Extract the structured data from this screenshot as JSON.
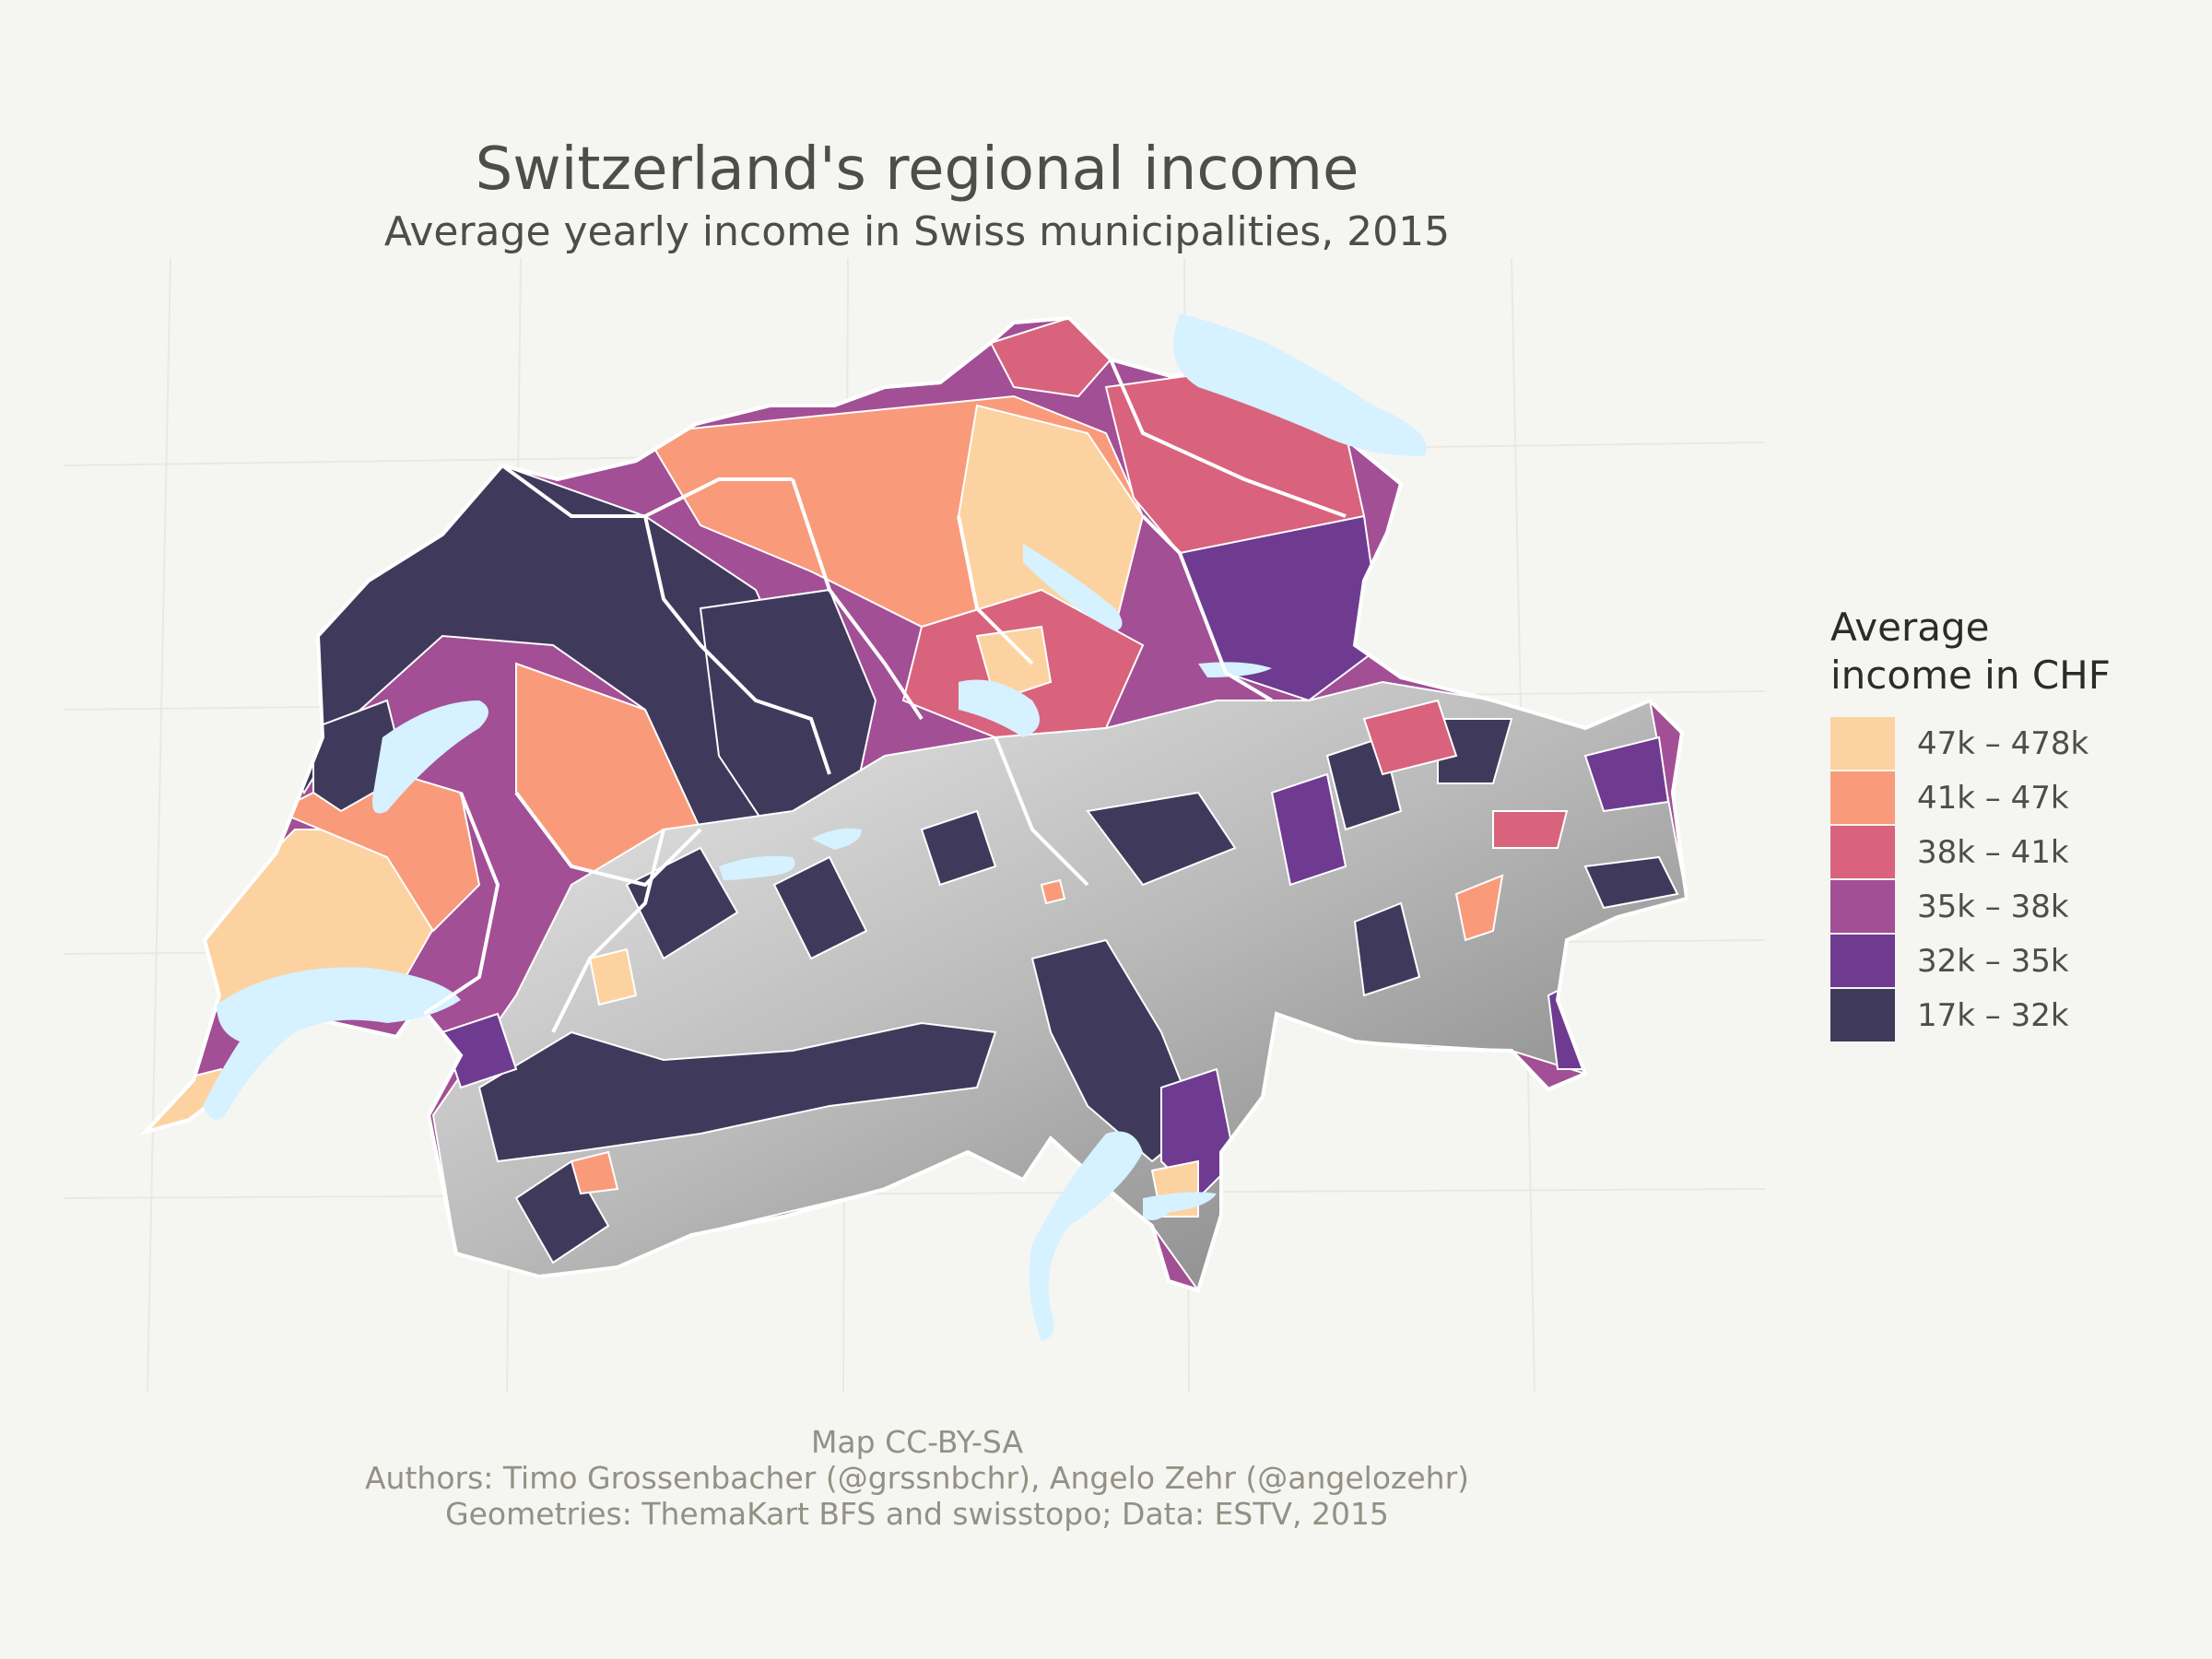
{
  "title": "Switzerland's regional income",
  "subtitle": "Average yearly income in Swiss municipalities, 2015",
  "legend": {
    "title": "Average\nincome in CHF",
    "items": [
      {
        "label": "47k – 478k",
        "color": "#fcd3a0"
      },
      {
        "label": "41k – 47k",
        "color": "#f99b7a"
      },
      {
        "label": "38k – 41k",
        "color": "#d9637c"
      },
      {
        "label": "35k – 38k",
        "color": "#a24f96"
      },
      {
        "label": "32k – 35k",
        "color": "#6e3b91"
      },
      {
        "label": "17k – 32k",
        "color": "#3f3a5c"
      }
    ]
  },
  "caption": {
    "line1": "Map CC-BY-SA",
    "line2": "Authors: Timo Grossenbacher (@grssnbchr), Angelo Zehr (@angelozehr)",
    "line3": "Geometries: ThemaKart BFS and swisstopo; Data: ESTV, 2015"
  },
  "colors": {
    "background": "#f5f5f2",
    "lake": "#d6f1ff",
    "relief": "#9c9c9c",
    "border": "#ffffff",
    "text": "#4e4d47",
    "caption": "#939184"
  }
}
